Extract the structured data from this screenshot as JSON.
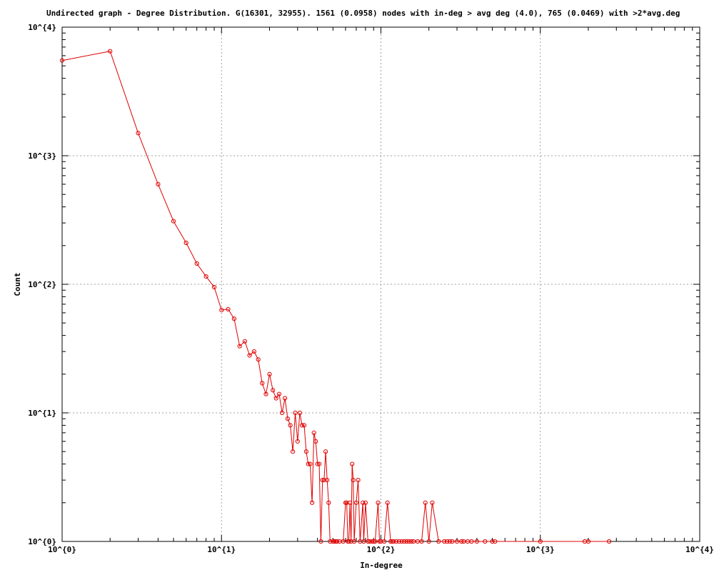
{
  "colors": {
    "series": "#e00000",
    "grid": "#a0a0a0",
    "axis": "#000000",
    "background": "#ffffff"
  },
  "chart_data": {
    "type": "line",
    "title": "Undirected graph - Degree Distribution. G(16301, 32955). 1561 (0.0958) nodes with in-deg > avg deg (4.0), 765 (0.0469) with >2*avg.deg",
    "xlabel": "In-degree",
    "ylabel": "Count",
    "x_scale": "log",
    "y_scale": "log",
    "xlim": [
      1,
      10000
    ],
    "ylim": [
      1,
      10000
    ],
    "x_ticks": [
      1,
      10,
      100,
      1000,
      10000
    ],
    "x_tick_labels": [
      "10^{0}",
      "10^{1}",
      "10^{2}",
      "10^{3}",
      "10^{4}"
    ],
    "y_ticks": [
      1,
      10,
      100,
      1000,
      10000
    ],
    "y_tick_labels": [
      "10^{0}",
      "10^{1}",
      "10^{2}",
      "10^{3}",
      "10^{4}"
    ],
    "grid": true,
    "marker": "circle",
    "series": [
      {
        "x": [
          1,
          2,
          3,
          4,
          5,
          6,
          7,
          8,
          9,
          10,
          11,
          12,
          13,
          14,
          15,
          16,
          17,
          18,
          19,
          20,
          21,
          22,
          23,
          24,
          25,
          26,
          27,
          28,
          29,
          30,
          31,
          32,
          33,
          34,
          35,
          36,
          37,
          38,
          39,
          40,
          41,
          42,
          43,
          44,
          45,
          46,
          47,
          48,
          50,
          51,
          52,
          53,
          55,
          58,
          60,
          61,
          62,
          63,
          64,
          65,
          66,
          67,
          68,
          70,
          72,
          74,
          77,
          78,
          80,
          83,
          85,
          88,
          90,
          92,
          96,
          98,
          100,
          105,
          110,
          115,
          118,
          120,
          125,
          130,
          135,
          140,
          145,
          150,
          155,
          160,
          170,
          180,
          190,
          200,
          210,
          230,
          250,
          260,
          270,
          280,
          300,
          320,
          330,
          350,
          370,
          400,
          450,
          500,
          520,
          1000,
          1900,
          2000,
          2700
        ],
        "y": [
          5500,
          6500,
          1500,
          600,
          310,
          210,
          145,
          115,
          95,
          63,
          64,
          54,
          33,
          36,
          28,
          30,
          26,
          17,
          14,
          20,
          15,
          13,
          14,
          10,
          13,
          9,
          8,
          5,
          10,
          6,
          10,
          8,
          8,
          5,
          4,
          4,
          2,
          7,
          6,
          4,
          4,
          1,
          3,
          3,
          5,
          3,
          2,
          1,
          1,
          1,
          1,
          1,
          1,
          1,
          2,
          2,
          1,
          1,
          2,
          1,
          4,
          3,
          1,
          2,
          3,
          1,
          2,
          1,
          2,
          1,
          1,
          1,
          1,
          1,
          2,
          1,
          1,
          1,
          2,
          1,
          1,
          1,
          1,
          1,
          1,
          1,
          1,
          1,
          1,
          1,
          1,
          1,
          2,
          1,
          2,
          1,
          1,
          1,
          1,
          1,
          1,
          1,
          1,
          1,
          1,
          1,
          1,
          1,
          1,
          1,
          1,
          1,
          1
        ]
      }
    ]
  }
}
